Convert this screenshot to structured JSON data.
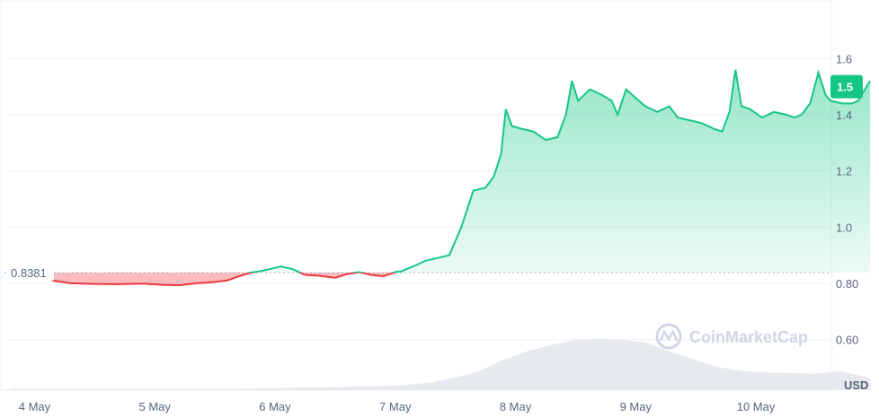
{
  "chart_data": {
    "type": "line",
    "title": "",
    "xlabel": "",
    "ylabel": "USD",
    "unit_label": "USD",
    "watermark": "CoinMarketCap",
    "x_ticks": [
      "4 May",
      "5 May",
      "6 May",
      "7 May",
      "8 May",
      "9 May",
      "10 May"
    ],
    "y_ticks": [
      "0.60",
      "0.80",
      "1.0",
      "1.2",
      "1.4",
      "1.6"
    ],
    "y_tick_values": [
      0.6,
      0.8,
      1.0,
      1.2,
      1.4,
      1.6
    ],
    "ylim": [
      0.42,
      1.77
    ],
    "xlim_days": [
      -0.25,
      6.62
    ],
    "reference_price": 0.8381,
    "reference_label": "0.8381",
    "current_price": 1.5,
    "current_label": "1.5",
    "colors": {
      "up": "#16c784",
      "down": "#ea3943",
      "grid": "#eff2f5",
      "label_bg": "#16c784",
      "volume": "#e6e9ee"
    },
    "x_day_offset_from": "4 May",
    "series": [
      {
        "points": [
          [
            -0.2,
            0.84
          ],
          [
            -0.1,
            0.84
          ],
          [
            0.0,
            0.838
          ],
          [
            0.15,
            0.81
          ],
          [
            0.3,
            0.8
          ],
          [
            0.5,
            0.798
          ],
          [
            0.7,
            0.797
          ],
          [
            0.9,
            0.799
          ],
          [
            1.05,
            0.795
          ],
          [
            1.2,
            0.793
          ],
          [
            1.35,
            0.8
          ],
          [
            1.5,
            0.805
          ],
          [
            1.6,
            0.81
          ],
          [
            1.7,
            0.825
          ],
          [
            1.8,
            0.838
          ],
          [
            1.9,
            0.845
          ],
          [
            2.0,
            0.855
          ],
          [
            2.05,
            0.86
          ],
          [
            2.15,
            0.85
          ],
          [
            2.25,
            0.83
          ],
          [
            2.35,
            0.828
          ],
          [
            2.5,
            0.82
          ],
          [
            2.6,
            0.833
          ],
          [
            2.7,
            0.84
          ],
          [
            2.8,
            0.83
          ],
          [
            2.9,
            0.825
          ],
          [
            3.0,
            0.84
          ],
          [
            3.05,
            0.843
          ],
          [
            3.15,
            0.86
          ],
          [
            3.25,
            0.88
          ],
          [
            3.35,
            0.89
          ],
          [
            3.45,
            0.9
          ],
          [
            3.55,
            1.0
          ],
          [
            3.65,
            1.13
          ],
          [
            3.75,
            1.14
          ],
          [
            3.82,
            1.18
          ],
          [
            3.88,
            1.26
          ],
          [
            3.92,
            1.42
          ],
          [
            3.97,
            1.36
          ],
          [
            4.05,
            1.35
          ],
          [
            4.15,
            1.34
          ],
          [
            4.25,
            1.31
          ],
          [
            4.35,
            1.32
          ],
          [
            4.42,
            1.4
          ],
          [
            4.47,
            1.52
          ],
          [
            4.52,
            1.45
          ],
          [
            4.62,
            1.49
          ],
          [
            4.72,
            1.47
          ],
          [
            4.8,
            1.45
          ],
          [
            4.85,
            1.4
          ],
          [
            4.92,
            1.49
          ],
          [
            5.0,
            1.46
          ],
          [
            5.08,
            1.43
          ],
          [
            5.18,
            1.41
          ],
          [
            5.28,
            1.43
          ],
          [
            5.35,
            1.39
          ],
          [
            5.45,
            1.38
          ],
          [
            5.55,
            1.37
          ],
          [
            5.65,
            1.35
          ],
          [
            5.72,
            1.34
          ],
          [
            5.78,
            1.41
          ],
          [
            5.83,
            1.56
          ],
          [
            5.88,
            1.43
          ],
          [
            5.95,
            1.42
          ],
          [
            6.05,
            1.39
          ],
          [
            6.15,
            1.41
          ],
          [
            6.25,
            1.4
          ],
          [
            6.32,
            1.39
          ],
          [
            6.38,
            1.4
          ],
          [
            6.45,
            1.44
          ],
          [
            6.52,
            1.55
          ],
          [
            6.58,
            1.47
          ],
          [
            6.62,
            1.45
          ],
          [
            6.72,
            1.44
          ],
          [
            6.8,
            1.44
          ],
          [
            6.85,
            1.45
          ],
          [
            6.92,
            1.5
          ],
          [
            6.95,
            1.52
          ]
        ]
      }
    ],
    "volume": {
      "label": "",
      "points": [
        [
          -0.2,
          0.02
        ],
        [
          0.5,
          0.02
        ],
        [
          1.0,
          0.02
        ],
        [
          1.5,
          0.02
        ],
        [
          2.0,
          0.03
        ],
        [
          2.5,
          0.05
        ],
        [
          3.0,
          0.07
        ],
        [
          3.3,
          0.12
        ],
        [
          3.5,
          0.2
        ],
        [
          3.7,
          0.3
        ],
        [
          3.9,
          0.48
        ],
        [
          4.1,
          0.62
        ],
        [
          4.3,
          0.72
        ],
        [
          4.5,
          0.8
        ],
        [
          4.7,
          0.82
        ],
        [
          4.9,
          0.8
        ],
        [
          5.1,
          0.75
        ],
        [
          5.3,
          0.6
        ],
        [
          5.5,
          0.48
        ],
        [
          5.7,
          0.36
        ],
        [
          5.9,
          0.3
        ],
        [
          6.1,
          0.28
        ],
        [
          6.3,
          0.27
        ],
        [
          6.5,
          0.26
        ],
        [
          6.7,
          0.3
        ],
        [
          6.9,
          0.22
        ],
        [
          6.95,
          0.18
        ]
      ]
    }
  }
}
